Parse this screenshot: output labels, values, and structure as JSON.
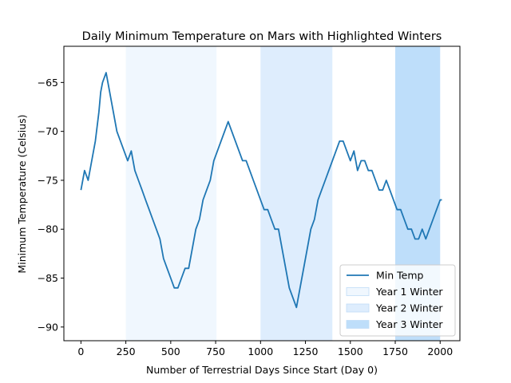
{
  "chart_data": {
    "type": "line",
    "title": "Daily Minimum Temperature on Mars with Highlighted Winters",
    "xlabel": "Number of Terrestrial Days Since Start (Day 0)",
    "ylabel": "Minimum Temperature (Celsius)",
    "xlim": [
      -95,
      2110
    ],
    "ylim": [
      -91.4,
      -61.3
    ],
    "xticks": [
      0,
      250,
      500,
      750,
      1000,
      1250,
      1500,
      1750,
      2000
    ],
    "yticks": [
      -90,
      -85,
      -80,
      -75,
      -70,
      -65
    ],
    "xtick_labels": [
      "0",
      "250",
      "500",
      "750",
      "1000",
      "1250",
      "1500",
      "1750",
      "2000"
    ],
    "ytick_labels": [
      "−90",
      "−85",
      "−80",
      "−75",
      "−70",
      "−65"
    ],
    "grid": false,
    "legend_position": "lower-right",
    "series": [
      {
        "name": "Min Temp",
        "color": "#1f77b4",
        "x": [
          0,
          20,
          40,
          60,
          80,
          100,
          110,
          120,
          140,
          160,
          180,
          200,
          220,
          240,
          260,
          280,
          300,
          320,
          340,
          360,
          380,
          400,
          420,
          440,
          460,
          480,
          500,
          520,
          540,
          560,
          580,
          600,
          620,
          640,
          660,
          680,
          700,
          720,
          740,
          760,
          780,
          800,
          820,
          840,
          860,
          880,
          900,
          920,
          940,
          960,
          980,
          1000,
          1020,
          1040,
          1060,
          1080,
          1100,
          1120,
          1140,
          1160,
          1180,
          1200,
          1220,
          1240,
          1260,
          1280,
          1300,
          1320,
          1340,
          1360,
          1380,
          1400,
          1420,
          1440,
          1460,
          1480,
          1500,
          1520,
          1540,
          1560,
          1580,
          1600,
          1620,
          1640,
          1660,
          1680,
          1700,
          1720,
          1740,
          1760,
          1780,
          1800,
          1820,
          1840,
          1860,
          1880,
          1900,
          1920,
          1940,
          1960,
          1980,
          2000,
          2010
        ],
        "y": [
          -76,
          -74,
          -75,
          -73,
          -71,
          -68,
          -66,
          -65,
          -64,
          -66,
          -68,
          -70,
          -71,
          -72,
          -73,
          -72,
          -74,
          -75,
          -76,
          -77,
          -78,
          -79,
          -80,
          -81,
          -83,
          -84,
          -85,
          -86,
          -86,
          -85,
          -84,
          -84,
          -82,
          -80,
          -79,
          -77,
          -76,
          -75,
          -73,
          -72,
          -71,
          -70,
          -69,
          -70,
          -71,
          -72,
          -73,
          -73,
          -74,
          -75,
          -76,
          -77,
          -78,
          -78,
          -79,
          -80,
          -80,
          -82,
          -84,
          -86,
          -87,
          -88,
          -86,
          -84,
          -82,
          -80,
          -79,
          -77,
          -76,
          -75,
          -74,
          -73,
          -72,
          -71,
          -71,
          -72,
          -73,
          -72,
          -74,
          -73,
          -73,
          -74,
          -74,
          -75,
          -76,
          -76,
          -75,
          -76,
          -77,
          -78,
          -78,
          -79,
          -80,
          -80,
          -81,
          -81,
          -80,
          -81,
          -80,
          -79,
          -78,
          -77,
          -77
        ]
      }
    ],
    "highlights": [
      {
        "name": "Year 1 Winter",
        "x0": 250,
        "x1": 755,
        "color": "#f0f7fe"
      },
      {
        "name": "Year 2 Winter",
        "x0": 1000,
        "x1": 1400,
        "color": "#deedfd"
      },
      {
        "name": "Year 3 Winter",
        "x0": 1750,
        "x1": 2000,
        "color": "#bedefa"
      }
    ]
  }
}
